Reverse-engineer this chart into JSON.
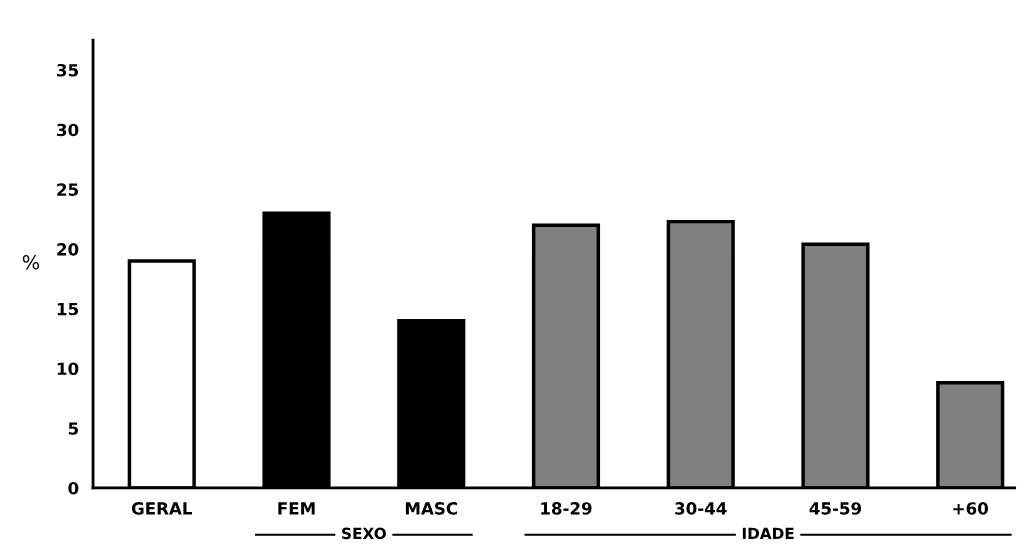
{
  "chart_data": {
    "type": "bar",
    "ylabel": "%",
    "categories": [
      "GERAL",
      "FEM",
      "MASC",
      "18-29",
      "30-44",
      "45-59",
      "+60"
    ],
    "values": [
      19,
      23,
      14,
      22,
      22.3,
      20.4,
      8.8
    ],
    "colors": [
      "#ffffff",
      "#000000",
      "#000000",
      "#808080",
      "#808080",
      "#808080",
      "#808080"
    ],
    "ylim": [
      0,
      37.5
    ],
    "yticks": [
      0,
      5,
      10,
      15,
      20,
      25,
      30,
      35
    ],
    "grid": false,
    "legend": false,
    "annotations": [
      "SEXO",
      "IDADE"
    ]
  }
}
